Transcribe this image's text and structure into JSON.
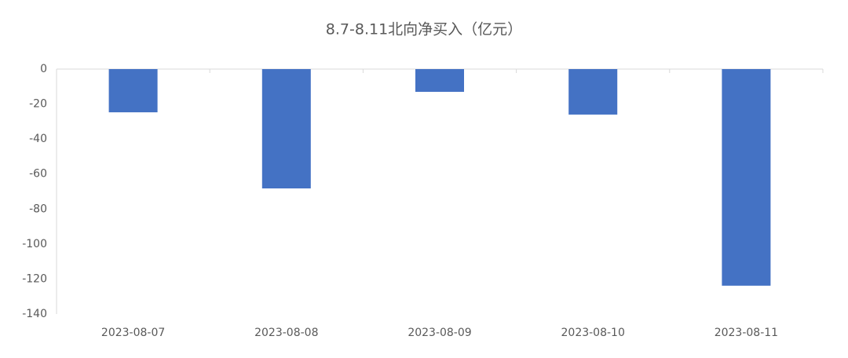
{
  "chart_data": {
    "type": "bar",
    "title": "8.7-8.11北向净买入（亿元）",
    "categories": [
      "2023-08-07",
      "2023-08-08",
      "2023-08-09",
      "2023-08-10",
      "2023-08-11"
    ],
    "values": [
      -24.7,
      -68.2,
      -13.0,
      -26.0,
      -123.8
    ],
    "color": "#4472c4",
    "ylim": [
      -140,
      0
    ],
    "yticks": [
      0,
      -20,
      -40,
      -60,
      -80,
      -100,
      -120,
      -140
    ],
    "grid": false
  }
}
